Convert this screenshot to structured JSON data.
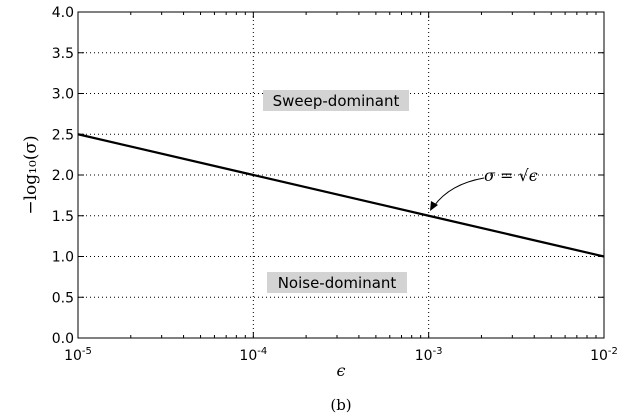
{
  "chart_data": {
    "type": "line",
    "x_scale": "log",
    "xlim": [
      "10^-5",
      "10^-2"
    ],
    "ylim": [
      0.0,
      4.0
    ],
    "xlabel": "ϵ",
    "ylabel": "−log₁₀(σ)",
    "xticks": [
      {
        "base": "10",
        "exp": "-5",
        "value": 1e-05
      },
      {
        "base": "10",
        "exp": "-4",
        "value": 0.0001
      },
      {
        "base": "10",
        "exp": "-3",
        "value": 0.001
      },
      {
        "base": "10",
        "exp": "-2",
        "value": 0.01
      }
    ],
    "yticks": [
      "0.0",
      "0.5",
      "1.0",
      "1.5",
      "2.0",
      "2.5",
      "3.0",
      "3.5",
      "4.0"
    ],
    "grid": "dotted, major ticks",
    "series": [
      {
        "points": [
          {
            "x": 1e-05,
            "y": 2.5
          },
          {
            "x": 0.0001,
            "y": 2.0
          },
          {
            "x": 0.001,
            "y": 1.5
          },
          {
            "x": 0.01,
            "y": 1.0
          }
        ],
        "color": "#000000"
      }
    ],
    "annotations": {
      "curve_label": "σ = √ϵ",
      "arrow_target": {
        "x": 0.001,
        "y": 1.5
      },
      "upper_region": "Sweep-dominant",
      "lower_region": "Noise-dominant"
    },
    "region_box_color": "#d3d3d3"
  },
  "caption": "(b)"
}
